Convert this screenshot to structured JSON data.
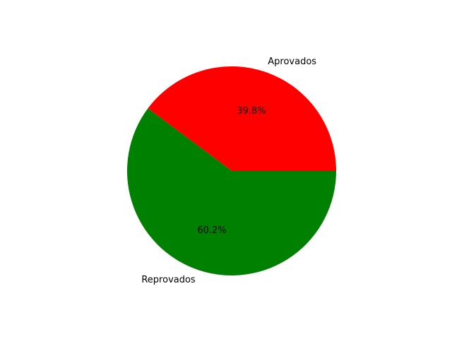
{
  "chart_data": {
    "type": "pie",
    "title": "",
    "slices": [
      {
        "label": "Aprovados",
        "value": 39.8,
        "pct_label": "39.8%",
        "color": "#ff0000"
      },
      {
        "label": "Reprovados",
        "value": 60.2,
        "pct_label": "60.2%",
        "color": "#008000"
      }
    ],
    "start_angle_deg": 0,
    "direction": "counterclockwise",
    "legend": "none"
  }
}
